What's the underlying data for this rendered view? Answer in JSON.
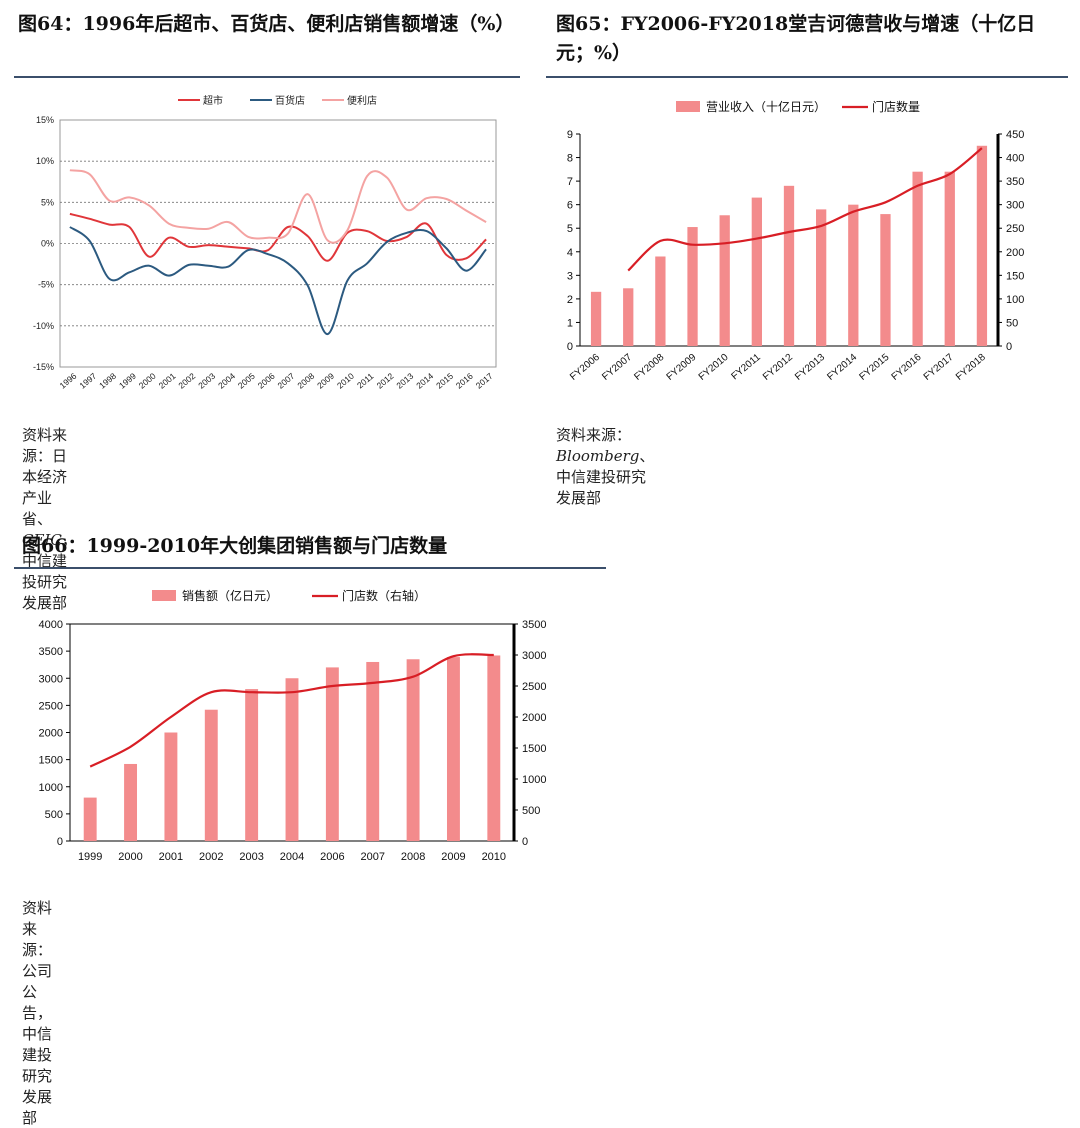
{
  "colors": {
    "supermarket": "#e0363a",
    "department": "#2c5a80",
    "convenience": "#f4a3a2",
    "bar": "#f38b8c",
    "line": "#d81e25",
    "grid": "#777777",
    "rule": "#3b4f6b"
  },
  "charts": [
    {
      "title": "图64：1996年后超市、百货店、便利店销售额增速（%）",
      "source_prefix": "资料来源：日本经济产业省、",
      "source_em": "CEIC",
      "source_suffix": "，中信建投研究发展部"
    },
    {
      "title": "图65：FY2006-FY2018堂吉诃德营收与增速（十亿日元；%）",
      "source_prefix": "资料来源：",
      "source_em": "Bloomberg",
      "source_suffix": "、中信建投研究发展部"
    },
    {
      "title": "图66：1999-2010年大创集团销售额与门店数量",
      "source_prefix": "资料来源：公司公告，中信建投研究发展部",
      "source_em": "",
      "source_suffix": ""
    }
  ],
  "chart_data": [
    {
      "type": "line",
      "grid": true,
      "legend_position": "top",
      "categories": [
        "1996",
        "1997",
        "1998",
        "1999",
        "2000",
        "2001",
        "2002",
        "2003",
        "2004",
        "2005",
        "2006",
        "2007",
        "2008",
        "2009",
        "2010",
        "2011",
        "2012",
        "2013",
        "2014",
        "2015",
        "2016",
        "2017"
      ],
      "y_ticks": [
        "15%",
        "10%",
        "5%",
        "0%",
        "-5%",
        "-10%",
        "-15%"
      ],
      "ylim": [
        -15,
        15
      ],
      "series": [
        {
          "name": "超市",
          "color_key": "supermarket",
          "values": [
            3.6,
            3.0,
            2.3,
            2.0,
            -1.6,
            0.7,
            -0.4,
            -0.2,
            -0.4,
            -0.6,
            -0.8,
            2.0,
            0.9,
            -2.1,
            1.3,
            1.5,
            0.3,
            0.8,
            2.4,
            -1.4,
            -1.8,
            0.5
          ]
        },
        {
          "name": "百货店",
          "color_key": "department",
          "values": [
            2.0,
            0.3,
            -4.3,
            -3.5,
            -2.7,
            -3.9,
            -2.6,
            -2.7,
            -2.8,
            -0.8,
            -1.3,
            -2.4,
            -5.1,
            -11.0,
            -4.5,
            -2.4,
            0.2,
            1.3,
            1.5,
            -0.6,
            -3.3,
            -0.7
          ]
        },
        {
          "name": "便利店",
          "color_key": "convenience",
          "values": [
            8.9,
            8.4,
            5.2,
            5.6,
            4.6,
            2.4,
            1.9,
            1.8,
            2.6,
            0.8,
            0.7,
            1.2,
            6.0,
            0.4,
            1.6,
            8.2,
            8.0,
            4.1,
            5.5,
            5.4,
            4.0,
            2.6
          ]
        }
      ]
    },
    {
      "type": "bar",
      "grid": false,
      "legend_position": "top",
      "categories": [
        "FY2006",
        "FY2007",
        "FY2008",
        "FY2009",
        "FY2010",
        "FY2011",
        "FY2012",
        "FY2013",
        "FY2014",
        "FY2015",
        "FY2016",
        "FY2017",
        "FY2018"
      ],
      "y_ticks": [
        "0",
        "1",
        "2",
        "3",
        "4",
        "5",
        "6",
        "7",
        "8",
        "9"
      ],
      "y2_ticks": [
        "0",
        "50",
        "100",
        "150",
        "200",
        "250",
        "300",
        "350",
        "400",
        "450"
      ],
      "ylim": [
        0,
        9
      ],
      "y2lim": [
        0,
        450
      ],
      "series": [
        {
          "name": "营业收入（十亿日元）",
          "kind": "bar",
          "axis": "left",
          "values": [
            2.3,
            2.45,
            3.8,
            5.05,
            5.55,
            6.3,
            6.8,
            5.8,
            6.0,
            5.6,
            7.4,
            7.4,
            8.5
          ]
        },
        {
          "name": "门店数量",
          "kind": "line",
          "axis": "right",
          "values": [
            null,
            160,
            223,
            215,
            218,
            228,
            242,
            255,
            285,
            305,
            340,
            365,
            420
          ]
        }
      ]
    },
    {
      "type": "bar",
      "grid": false,
      "legend_position": "top",
      "categories": [
        "1999",
        "2000",
        "2001",
        "2002",
        "2003",
        "2004",
        "2006",
        "2007",
        "2008",
        "2009",
        "2010"
      ],
      "y_ticks": [
        "0",
        "500",
        "1000",
        "1500",
        "2000",
        "2500",
        "3000",
        "3500",
        "4000"
      ],
      "y2_ticks": [
        "0",
        "500",
        "1000",
        "1500",
        "2000",
        "2500",
        "3000",
        "3500"
      ],
      "ylim": [
        0,
        4000
      ],
      "y2lim": [
        0,
        3500
      ],
      "series": [
        {
          "name": "销售额（亿日元）",
          "kind": "bar",
          "axis": "left",
          "values": [
            800,
            1420,
            2000,
            2420,
            2800,
            3000,
            3200,
            3300,
            3350,
            3390,
            3420
          ]
        },
        {
          "name": "门店数（右轴）",
          "kind": "line",
          "axis": "right",
          "values": [
            1200,
            1520,
            2000,
            2400,
            2400,
            2400,
            2500,
            2550,
            2650,
            2980,
            3000
          ]
        }
      ]
    }
  ]
}
